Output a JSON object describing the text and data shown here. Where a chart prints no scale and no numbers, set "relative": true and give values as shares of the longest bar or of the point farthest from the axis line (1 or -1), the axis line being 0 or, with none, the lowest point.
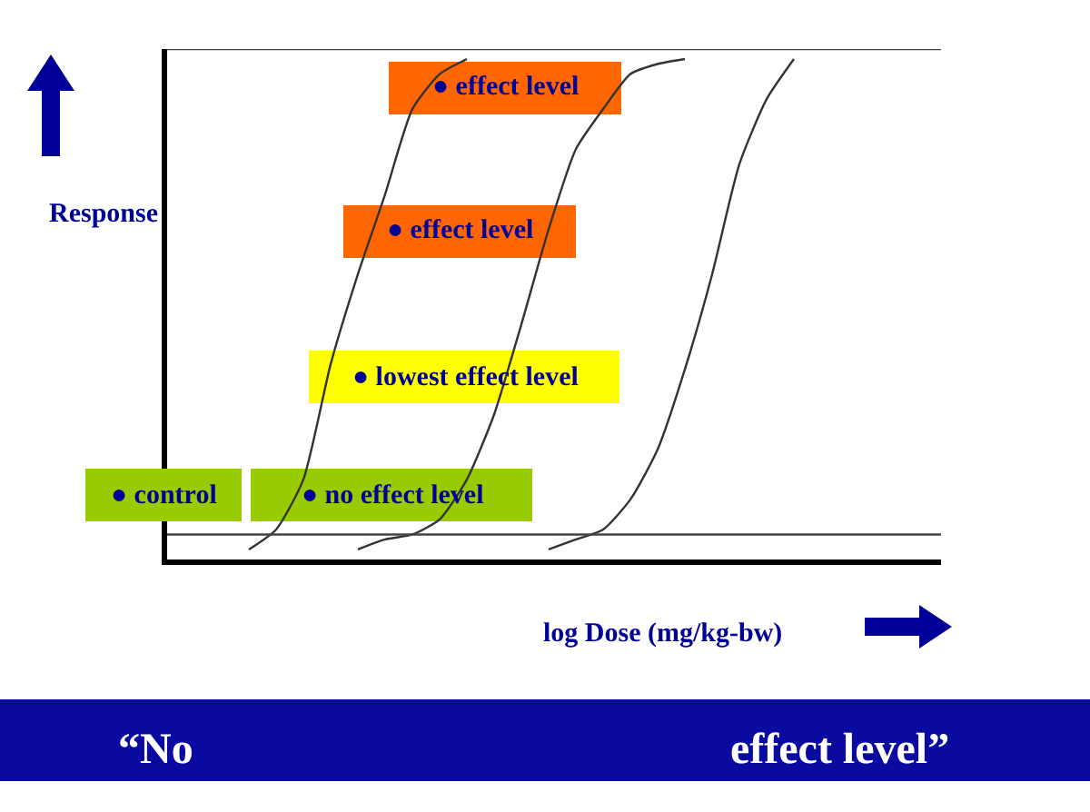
{
  "chart_data": {
    "type": "line",
    "relative": true,
    "ylabel": "Response",
    "categories": [
      null,
      null,
      null,
      null,
      null,
      null,
      null,
      null,
      null,
      null,
      null,
      null,
      null,
      null,
      null,
      null,
      null,
      null,
      null,
      null,
      null,
      null,
      null,
      null,
      null,
      null,
      null,
      null,
      null
    ],
    "series": [
      {
        "color": "#333333",
        "values": [
          null,
          null,
          null,
          0.02,
          0.06,
          0.16,
          0.39,
          0.57,
          0.73,
          0.9,
          0.97,
          1,
          null,
          null,
          null,
          null,
          null,
          null,
          null,
          null,
          null,
          null,
          null,
          null,
          null,
          null,
          null,
          null,
          null
        ]
      },
      {
        "color": "#333333",
        "values": [
          null,
          null,
          null,
          null,
          null,
          null,
          null,
          0.02,
          0.04,
          0.05,
          0.08,
          0.16,
          0.29,
          0.47,
          0.66,
          0.82,
          0.9,
          0.97,
          0.99,
          1,
          null,
          null,
          null,
          null,
          null,
          null,
          null,
          null,
          null
        ]
      },
      {
        "color": "#333333",
        "values": [
          null,
          null,
          null,
          null,
          null,
          null,
          null,
          null,
          null,
          null,
          null,
          null,
          null,
          null,
          0.02,
          0.04,
          0.06,
          0.12,
          0.22,
          0.38,
          0.57,
          0.79,
          0.92,
          1,
          null,
          null,
          null,
          null,
          null
        ]
      }
    ],
    "ref_lines": [
      {
        "axis": "y",
        "value": 1.02,
        "color": "#444444"
      },
      {
        "axis": "y",
        "value": 0.05,
        "color": "#444444"
      }
    ],
    "annotations": [
      "● control",
      "● no effect level",
      "● lowest effect level",
      "● effect level",
      "● effect level",
      "log Dose (mg/kg-bw)",
      "“No",
      "effect level”"
    ],
    "line_style": "solid",
    "legend": false
  }
}
